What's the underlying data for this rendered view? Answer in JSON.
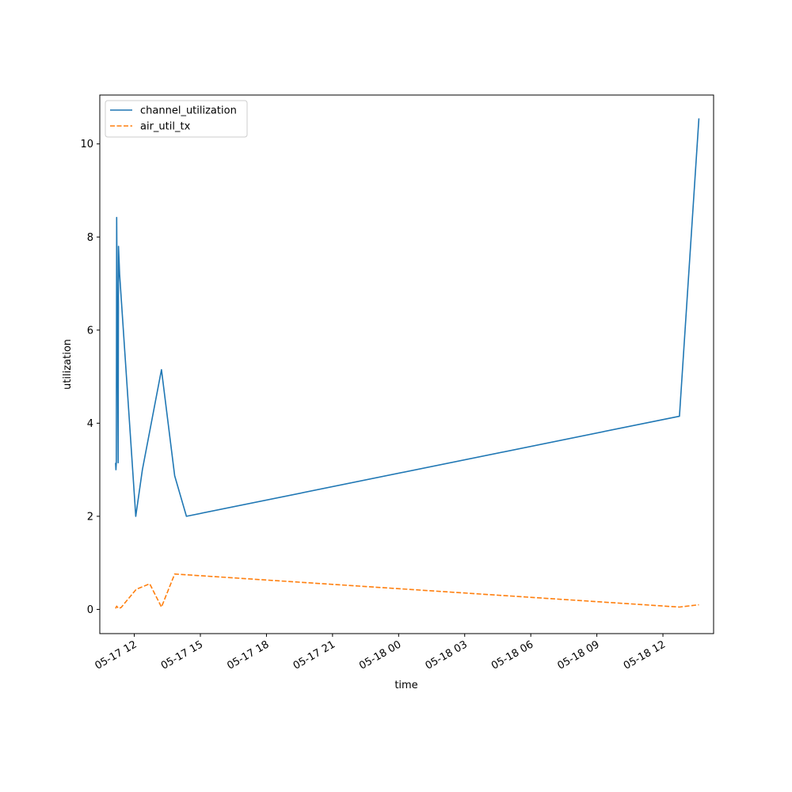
{
  "chart_data": {
    "type": "line",
    "title": "",
    "xlabel": "time",
    "ylabel": "utilization",
    "x_axis_type": "datetime",
    "xlim": [
      "2024-05-17T10:26:00",
      "2024-05-18T14:18:00"
    ],
    "ylim": [
      -0.52,
      11.05
    ],
    "x_ticks": [
      {
        "value": "2024-05-17T12:00:00",
        "label": "05-17 12"
      },
      {
        "value": "2024-05-17T15:00:00",
        "label": "05-17 15"
      },
      {
        "value": "2024-05-17T18:00:00",
        "label": "05-17 18"
      },
      {
        "value": "2024-05-17T21:00:00",
        "label": "05-17 21"
      },
      {
        "value": "2024-05-18T00:00:00",
        "label": "05-18 00"
      },
      {
        "value": "2024-05-18T03:00:00",
        "label": "05-18 03"
      },
      {
        "value": "2024-05-18T06:00:00",
        "label": "05-18 06"
      },
      {
        "value": "2024-05-18T09:00:00",
        "label": "05-18 09"
      },
      {
        "value": "2024-05-18T12:00:00",
        "label": "05-18 12"
      }
    ],
    "y_ticks": [
      {
        "value": 0,
        "label": "0"
      },
      {
        "value": 2,
        "label": "2"
      },
      {
        "value": 4,
        "label": "4"
      },
      {
        "value": 6,
        "label": "6"
      },
      {
        "value": 8,
        "label": "8"
      },
      {
        "value": 10,
        "label": "10"
      }
    ],
    "grid": false,
    "legend_position": "top-left",
    "series": [
      {
        "name": "channel_utilization",
        "color": "#1f77b4",
        "style": "solid",
        "points": [
          {
            "x": "2024-05-17T11:09:00",
            "y": 3.15
          },
          {
            "x": "2024-05-17T11:10:00",
            "y": 3.0
          },
          {
            "x": "2024-05-17T11:11:00",
            "y": 3.15
          },
          {
            "x": "2024-05-17T11:12:00",
            "y": 8.42
          },
          {
            "x": "2024-05-17T11:15:00",
            "y": 4.5
          },
          {
            "x": "2024-05-17T11:16:00",
            "y": 3.15
          },
          {
            "x": "2024-05-17T11:17:00",
            "y": 7.8
          },
          {
            "x": "2024-05-17T11:20:00",
            "y": 7.2
          },
          {
            "x": "2024-05-17T12:04:00",
            "y": 2.0
          },
          {
            "x": "2024-05-17T12:22:00",
            "y": 3.0
          },
          {
            "x": "2024-05-17T13:14:00",
            "y": 5.15
          },
          {
            "x": "2024-05-17T13:50:00",
            "y": 2.87
          },
          {
            "x": "2024-05-17T14:22:00",
            "y": 2.0
          },
          {
            "x": "2024-05-18T12:45:00",
            "y": 4.15
          },
          {
            "x": "2024-05-18T13:38:00",
            "y": 10.55
          }
        ]
      },
      {
        "name": "air_util_tx",
        "color": "#ff7f0e",
        "style": "dashed",
        "points": [
          {
            "x": "2024-05-17T11:09:00",
            "y": 0.02
          },
          {
            "x": "2024-05-17T11:12:00",
            "y": 0.07
          },
          {
            "x": "2024-05-17T11:17:00",
            "y": 0.02
          },
          {
            "x": "2024-05-17T11:24:00",
            "y": 0.04
          },
          {
            "x": "2024-05-17T12:05:00",
            "y": 0.43
          },
          {
            "x": "2024-05-17T12:42:00",
            "y": 0.55
          },
          {
            "x": "2024-05-17T13:14:00",
            "y": 0.05
          },
          {
            "x": "2024-05-17T13:50:00",
            "y": 0.76
          },
          {
            "x": "2024-05-18T12:45:00",
            "y": 0.05
          },
          {
            "x": "2024-05-18T13:38:00",
            "y": 0.1
          }
        ]
      }
    ]
  }
}
